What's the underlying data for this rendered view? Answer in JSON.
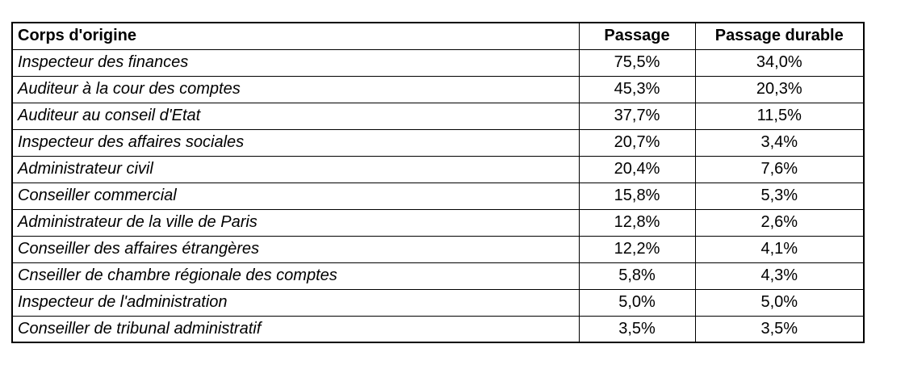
{
  "colors": {
    "border": "#000000",
    "background": "#ffffff",
    "text": "#000000"
  },
  "chart_data": {
    "type": "table",
    "title": "",
    "columns": [
      "Corps d'origine",
      "Passage",
      "Passage durable"
    ],
    "rows": [
      {
        "corps": "Inspecteur des finances",
        "passage": "75,5%",
        "passage_durable": "34,0%"
      },
      {
        "corps": "Auditeur  à la cour des comptes",
        "passage": "45,3%",
        "passage_durable": "20,3%"
      },
      {
        "corps": "Auditeur  au conseil d'Etat",
        "passage": "37,7%",
        "passage_durable": "11,5%"
      },
      {
        "corps": "Inspecteur des affaires sociales",
        "passage": "20,7%",
        "passage_durable": "3,4%"
      },
      {
        "corps": "Administrateur civil",
        "passage": "20,4%",
        "passage_durable": "7,6%"
      },
      {
        "corps": "Conseiller commercial",
        "passage": "15,8%",
        "passage_durable": "5,3%"
      },
      {
        "corps": "Administrateur  de la ville de Paris",
        "passage": "12,8%",
        "passage_durable": "2,6%"
      },
      {
        "corps": "Conseiller des affaires étrangères",
        "passage": "12,2%",
        "passage_durable": "4,1%"
      },
      {
        "corps": "Cnseiller  de chambre régionale des comptes",
        "passage": "5,8%",
        "passage_durable": "4,3%"
      },
      {
        "corps": "Inspecteur de l'administration",
        "passage": "5,0%",
        "passage_durable": "5,0%"
      },
      {
        "corps": "Conseiller  de tribunal administratif",
        "passage": "3,5%",
        "passage_durable": "3,5%"
      }
    ]
  }
}
